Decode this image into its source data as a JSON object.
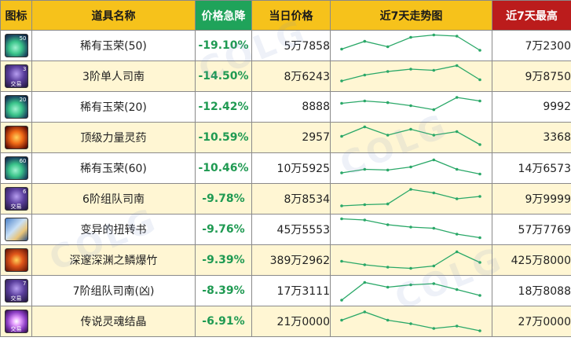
{
  "headers": {
    "icon": "图标",
    "name": "道具名称",
    "drop": "价格急降",
    "price": "当日价格",
    "trend": "近7天走势图",
    "max": "近7天最高"
  },
  "colors": {
    "header_bg": "#f6c21b",
    "drop_header_bg": "#1fa35a",
    "max_header_bg": "#bb1c1c",
    "drop_text": "#1f9a52",
    "trend_line": "#2aa868",
    "row_alt_bg": "#fff6d3"
  },
  "rows": [
    {
      "icon": "jade-icon",
      "badge": "50",
      "tag": "",
      "name": "稀有玉荣(50)",
      "drop": "-19.10%",
      "price": "5万7858",
      "max": "7万2300",
      "trend": [
        0.35,
        0.68,
        0.45,
        0.85,
        0.95,
        0.9,
        0.3
      ]
    },
    {
      "icon": "ticket-icon",
      "badge": "3",
      "tag": "交易",
      "name": "3阶单人司南",
      "drop": "-14.50%",
      "price": "8万6243",
      "max": "9万8750",
      "trend": [
        0.3,
        0.55,
        0.7,
        0.8,
        0.75,
        0.95,
        0.35
      ]
    },
    {
      "icon": "jade-icon",
      "badge": "20",
      "tag": "",
      "name": "稀有玉荣(20)",
      "drop": "-12.42%",
      "price": "8888",
      "max": "9992",
      "trend": [
        0.65,
        0.75,
        0.68,
        0.55,
        0.38,
        0.9,
        0.75
      ]
    },
    {
      "icon": "potion-icon",
      "badge": "",
      "tag": "",
      "name": "顶级力量灵药",
      "drop": "-10.59%",
      "price": "2957",
      "max": "3368",
      "trend": [
        0.55,
        0.95,
        0.6,
        0.85,
        0.6,
        0.75,
        0.2
      ]
    },
    {
      "icon": "jade-icon",
      "badge": "60",
      "tag": "",
      "name": "稀有玉荣(60)",
      "drop": "-10.46%",
      "price": "10万5925",
      "max": "14万6573",
      "trend": [
        0.3,
        0.45,
        0.42,
        0.55,
        0.85,
        0.45,
        0.25
      ]
    },
    {
      "icon": "ticket-icon",
      "badge": "6",
      "tag": "交易",
      "name": "6阶组队司南",
      "drop": "-9.78%",
      "price": "8万8534",
      "max": "9万9999",
      "trend": [
        0.2,
        0.25,
        0.28,
        0.9,
        0.75,
        0.5,
        0.6
      ]
    },
    {
      "icon": "book-icon",
      "badge": "",
      "tag": "",
      "name": "变异的扭转书",
      "drop": "-9.76%",
      "price": "45万5553",
      "max": "57万7769",
      "trend": [
        0.95,
        0.9,
        0.7,
        0.6,
        0.55,
        0.3,
        0.15
      ]
    },
    {
      "icon": "bamboo-icon",
      "badge": "",
      "tag": "",
      "name": "深邃深渊之鳞爆竹",
      "drop": "-9.39%",
      "price": "389万2962",
      "max": "425万8000",
      "trend": [
        0.45,
        0.3,
        0.2,
        0.15,
        0.25,
        0.85,
        0.4
      ]
    },
    {
      "icon": "ticket-icon",
      "badge": "7",
      "tag": "交易",
      "name": "7阶组队司南(凶)",
      "drop": "-8.39%",
      "price": "17万3111",
      "max": "18万8088",
      "trend": [
        0.1,
        0.85,
        0.65,
        0.75,
        0.8,
        0.55,
        0.3
      ]
    },
    {
      "icon": "crystal-icon",
      "badge": "",
      "tag": "交易",
      "name": "传说灵魂结晶",
      "drop": "-6.91%",
      "price": "21万0000",
      "max": "27万0000",
      "trend": [
        0.55,
        0.9,
        0.55,
        0.4,
        0.2,
        0.3,
        0.1
      ]
    }
  ]
}
